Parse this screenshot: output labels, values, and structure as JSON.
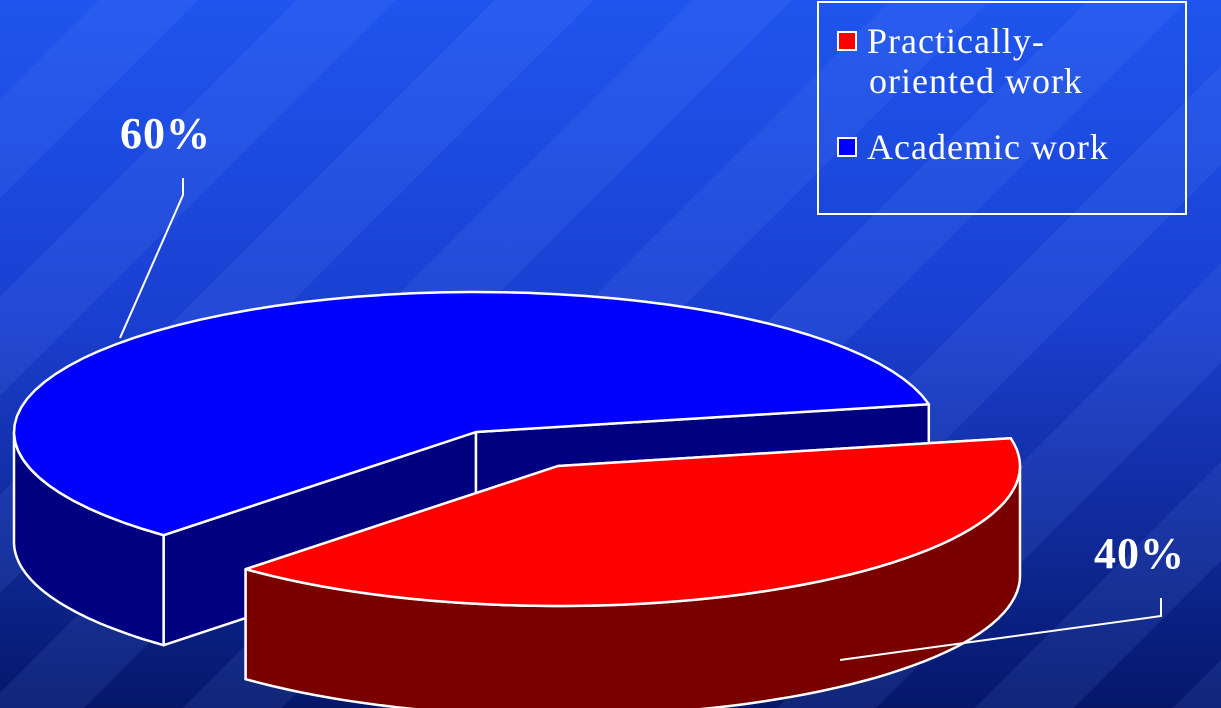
{
  "chart_data": {
    "type": "pie",
    "title": "",
    "labels": [
      "Practically-oriented work",
      "Academic work"
    ],
    "values": [
      40,
      60
    ],
    "value_labels": [
      "40%",
      "60%"
    ],
    "colors": [
      "#ff0000",
      "#0000ff"
    ],
    "side_colors": [
      "#7a0000",
      "#000080"
    ],
    "style": "3d-exploded",
    "legend_position": "top-right"
  },
  "legend": {
    "items": [
      {
        "label": "Practically-oriented work",
        "line1": "Practically-",
        "line2": "oriented work",
        "color": "#ff0000"
      },
      {
        "label": "Academic work",
        "line1": "Academic work",
        "color": "#0000ff"
      }
    ]
  }
}
